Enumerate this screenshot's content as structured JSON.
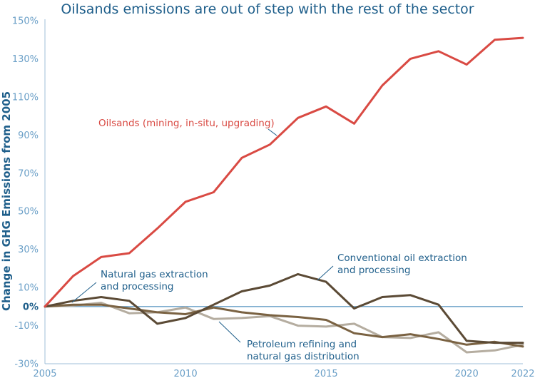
{
  "title": "Oilsands emissions are out of step with the rest of the sector",
  "chart_data": {
    "type": "line",
    "title": "Oilsands emissions are out of step with the rest of the sector",
    "xlabel": "",
    "ylabel": "Change in GHG Emissions from 2005",
    "xlim": [
      2005,
      2022
    ],
    "ylim": [
      -30,
      150
    ],
    "x": [
      2005,
      2006,
      2007,
      2008,
      2009,
      2010,
      2011,
      2012,
      2013,
      2014,
      2015,
      2016,
      2017,
      2018,
      2019,
      2020,
      2021,
      2022
    ],
    "x_ticks": [
      2005,
      2010,
      2015,
      2020,
      2022
    ],
    "x_tick_labels": [
      "2005",
      "2010",
      "2015",
      "2020",
      "2022"
    ],
    "y_ticks": [
      -30,
      -10,
      0,
      10,
      30,
      50,
      70,
      90,
      110,
      130,
      150
    ],
    "y_tick_labels": [
      "-30%",
      "-10%",
      "0%",
      "10%",
      "30%",
      "50%",
      "70%",
      "90%",
      "110%",
      "130%",
      "150%"
    ],
    "series": [
      {
        "name": "Oilsands (mining, in-situ, upgrading)",
        "color": "#d94a43",
        "values": [
          0,
          16,
          26,
          28,
          41,
          55,
          60,
          78,
          85,
          99,
          105,
          96,
          116,
          130,
          134,
          127,
          140,
          141
        ]
      },
      {
        "name": "Conventional oil extraction and processing",
        "color": "#5b4a35",
        "values": [
          0,
          3,
          5,
          3,
          -9,
          -6,
          1,
          8,
          11,
          17,
          13,
          -1,
          5,
          6,
          1,
          -18,
          -19,
          -19
        ]
      },
      {
        "name": "Natural gas extraction and processing",
        "color": "#7a6242",
        "values": [
          0,
          1,
          1,
          -1,
          -3,
          -4,
          -0.5,
          -3,
          -4.5,
          -5.5,
          -7,
          -14,
          -16,
          -14.5,
          -17,
          -20,
          -18.5,
          -21
        ]
      },
      {
        "name": "Petroleum refining and natural gas distribution",
        "color": "#b5ada0",
        "values": [
          0,
          0.5,
          2,
          -3.5,
          -3,
          -0.5,
          -6.5,
          -6,
          -5,
          -10,
          -10.5,
          -9,
          -16,
          -16.5,
          -13.5,
          -24,
          -23,
          -20
        ]
      }
    ],
    "annotations": [
      {
        "text_lines": [
          "Oilsands (mining, in-situ, upgrading)"
        ],
        "color": "#d94a43"
      },
      {
        "text_lines": [
          "Natural gas extraction",
          "and processing"
        ],
        "color": "#1f5f8b"
      },
      {
        "text_lines": [
          "Conventional oil extraction",
          "and processing"
        ],
        "color": "#1f5f8b"
      },
      {
        "text_lines": [
          "Petroleum refining and",
          "natural gas distribution"
        ],
        "color": "#1f5f8b"
      }
    ],
    "grid": false,
    "zero_line_color": "#6a9fc7"
  }
}
